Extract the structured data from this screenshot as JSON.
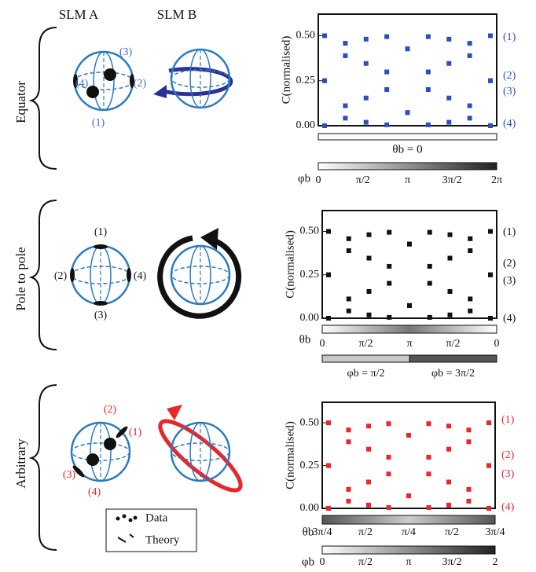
{
  "header": {
    "slm_a": "SLM A",
    "slm_b": "SLM B"
  },
  "rows": [
    {
      "label": "Equator",
      "points": [
        "(1)",
        "(2)",
        "(3)",
        "(4)"
      ]
    },
    {
      "label": "Pole to pole",
      "points": [
        "(1)",
        "(2)",
        "(3)",
        "(4)"
      ]
    },
    {
      "label": "Arbitrary",
      "points": [
        "(1)",
        "(2)",
        "(3)",
        "(4)"
      ]
    }
  ],
  "legend": {
    "data": "Data",
    "theory": "Theory"
  },
  "chart_data": [
    {
      "type": "scatter",
      "ylabel": "C(normalised)",
      "x": [
        0,
        1,
        2,
        3,
        4,
        5,
        6,
        7,
        8
      ],
      "xlim": [
        0,
        8
      ],
      "ylim": [
        0,
        0.62
      ],
      "yticks": [
        {
          "value": 0,
          "label": "0.00"
        },
        {
          "value": 0.25,
          "label": "0.25"
        },
        {
          "value": 0.5,
          "label": "0.50"
        }
      ],
      "series": [
        {
          "name": "(1)",
          "color": "#2b4fc0",
          "values": [
            0.5,
            0.389,
            0.154,
            0.005,
            0.073,
            0.299,
            0.481,
            0.458,
            0.25
          ]
        },
        {
          "name": "(2)",
          "color": "#2b4fc0",
          "values": [
            0.25,
            0.042,
            0.019,
            0.201,
            0.427,
            0.495,
            0.346,
            0.111,
            0
          ]
        },
        {
          "name": "(3)",
          "color": "#2b4fc0",
          "values": [
            0.25,
            0.458,
            0.481,
            0.299,
            0.073,
            0.005,
            0.154,
            0.389,
            0.5
          ]
        },
        {
          "name": "(4)",
          "color": "#2b4fc0",
          "values": [
            0,
            0.111,
            0.346,
            0.495,
            0.427,
            0.201,
            0.019,
            0.042,
            0.25
          ]
        }
      ],
      "theta_bar": {
        "label": "θb = 0"
      },
      "phi_bar": {
        "symbol": "φb",
        "ticks": [
          "0",
          "π/2",
          "π",
          "3π/2",
          "2π"
        ]
      }
    },
    {
      "type": "scatter",
      "ylabel": "C(normalised)",
      "x": [
        0,
        1,
        2,
        3,
        4,
        5,
        6,
        7,
        8
      ],
      "xlim": [
        0,
        8
      ],
      "ylim": [
        0,
        0.62
      ],
      "yticks": [
        {
          "value": 0,
          "label": "0.00"
        },
        {
          "value": 0.25,
          "label": "0.25"
        },
        {
          "value": 0.5,
          "label": "0.50"
        }
      ],
      "series": [
        {
          "name": "(1)",
          "color": "#111111",
          "values": [
            0.5,
            0.389,
            0.154,
            0.005,
            0.073,
            0.299,
            0.481,
            0.458,
            0.25
          ]
        },
        {
          "name": "(2)",
          "color": "#111111",
          "values": [
            0.25,
            0.042,
            0.019,
            0.201,
            0.427,
            0.495,
            0.346,
            0.111,
            0
          ]
        },
        {
          "name": "(3)",
          "color": "#111111",
          "values": [
            0.25,
            0.458,
            0.481,
            0.299,
            0.073,
            0.005,
            0.154,
            0.389,
            0.5
          ]
        },
        {
          "name": "(4)",
          "color": "#111111",
          "values": [
            0,
            0.111,
            0.346,
            0.495,
            0.427,
            0.201,
            0.019,
            0.042,
            0.25
          ]
        }
      ],
      "theta_bar": {
        "symbol": "θb",
        "ticks": [
          "0",
          "π/2",
          "π",
          "π/2",
          "0"
        ]
      },
      "phi_bar": {
        "parts": [
          "φb = π/2",
          "φb = 3π/2"
        ]
      }
    },
    {
      "type": "scatter",
      "ylabel": "C(normalised)",
      "x": [
        0,
        1,
        2,
        3,
        4,
        5,
        6,
        7,
        8
      ],
      "xlim": [
        0,
        8
      ],
      "ylim": [
        0,
        0.62
      ],
      "yticks": [
        {
          "value": 0,
          "label": "0.00"
        },
        {
          "value": 0.25,
          "label": "0.25"
        },
        {
          "value": 0.5,
          "label": "0.50"
        }
      ],
      "series": [
        {
          "name": "(1)",
          "color": "#e8262b",
          "values": [
            0.5,
            0.389,
            0.154,
            0.005,
            0.073,
            0.299,
            0.481,
            0.458,
            0.25
          ]
        },
        {
          "name": "(2)",
          "color": "#e8262b",
          "values": [
            0.25,
            0.042,
            0.019,
            0.201,
            0.427,
            0.495,
            0.346,
            0.111,
            0
          ]
        },
        {
          "name": "(3)",
          "color": "#e8262b",
          "values": [
            0.25,
            0.458,
            0.481,
            0.299,
            0.073,
            0.005,
            0.154,
            0.389,
            0.5
          ]
        },
        {
          "name": "(4)",
          "color": "#e8262b",
          "values": [
            0,
            0.111,
            0.346,
            0.495,
            0.427,
            0.201,
            0.019,
            0.042,
            0.25
          ]
        }
      ],
      "theta_bar": {
        "symbol": "θb",
        "ticks": [
          "3π/4",
          "π/2",
          "π/4",
          "π/2",
          "3π/4"
        ]
      },
      "phi_bar": {
        "symbol": "φb",
        "ticks": [
          "0",
          "π/2",
          "π",
          "3π/2",
          "2"
        ]
      }
    }
  ]
}
